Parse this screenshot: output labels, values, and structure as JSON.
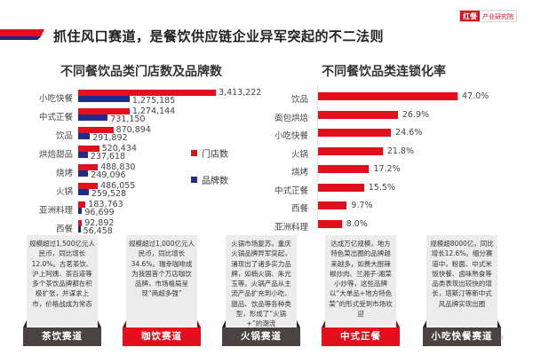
{
  "header": {
    "title": "抓住风口赛道，是餐饮供应链企业异军突起的不二法则",
    "logo_mark": "红餐",
    "logo_text": "产业研究院"
  },
  "colors": {
    "red": "#e0101c",
    "blue": "#1c2e8a",
    "dark": "#4a4342",
    "card_bg": "#ececec"
  },
  "chart_data": [
    {
      "type": "bar",
      "orientation": "horizontal",
      "title": "不同餐饮品类门店数及品牌数",
      "categories": [
        "小吃快餐",
        "中式正餐",
        "饮品",
        "烘焙甜品",
        "烧烤",
        "火锅",
        "亚洲料理",
        "西餐"
      ],
      "series": [
        {
          "name": "门店数",
          "color": "#e0101c",
          "values": [
            3413222,
            1274144,
            870894,
            520434,
            488830,
            486055,
            183763,
            92892
          ],
          "labels": [
            "3,413,222",
            "1,274,144",
            "870,894",
            "520,434",
            "488,830",
            "486,055",
            "183,763",
            "92,892"
          ]
        },
        {
          "name": "品牌数",
          "color": "#1c2e8a",
          "values": [
            1275185,
            731150,
            291892,
            237618,
            249096,
            259528,
            96699,
            56458
          ],
          "labels": [
            "1,275,185",
            "731,150",
            "291,892",
            "237,618",
            "249,096",
            "259,528",
            "96,699",
            "56,458"
          ]
        }
      ],
      "legend": [
        "门店数",
        "品牌数"
      ],
      "legend_position": "right",
      "grid": false
    },
    {
      "type": "bar",
      "orientation": "horizontal",
      "title": "不同餐饮品类连锁化率",
      "categories": [
        "饮品",
        "面包烘焙",
        "小吃快餐",
        "火锅",
        "烧烤",
        "中式正餐",
        "西餐",
        "亚洲料理"
      ],
      "values": [
        47.0,
        26.9,
        24.6,
        21.8,
        17.2,
        15.5,
        9.7,
        8.0
      ],
      "labels": [
        "47.0%",
        "26.9%",
        "24.6%",
        "21.8%",
        "17.2%",
        "15.5%",
        "9.7%",
        "8.0%"
      ],
      "unit": "%",
      "color": "#e0101c",
      "grid": false
    }
  ],
  "cards": [
    {
      "label": "茶饮赛道",
      "style": "dark",
      "text": "规模超过1,500亿元人民币，同比增长12.0%。古茗茶饮、沪上阿姨、茶百道等多个茶饮品牌都在积极扩张，并谋求上市，价格战成为常态"
    },
    {
      "label": "咖饮赛道",
      "style": "red",
      "text": "规模超过1,000亿元人民币，同比增长34.6%。瑞幸咖啡成为我国首个万店咖饮品牌，市场格局呈现“两超多强”"
    },
    {
      "label": "火锅赛道",
      "style": "dark",
      "text": "火锅市场复苏，重庆火锅品牌异军突起，涌现出了诸多实力品牌，如楠火锅、朱光玉等。火锅产品从主流产品扩充到小吃、甜品、饮品等各种类型，形成了“火锅+”的潮流"
    },
    {
      "label": "中式正餐",
      "style": "red",
      "text": "达成万亿规模，地方特色菜出圈的品牌越来越多，如费大厨辣椒炒肉、兰湘子·湘菜小炒等，这些品牌以“大单品+地方特色菜”的形式受到市场欢迎"
    },
    {
      "label": "小吃快餐赛道",
      "style": "dark",
      "text": "规模超8000亿，同比增长12.6%。细分赛道中，粉面、中式米饭快餐、卤味熟食等品类表现出较快的增长，塔斯汀等新中式风品牌实现出圈"
    }
  ],
  "page_number": "3"
}
